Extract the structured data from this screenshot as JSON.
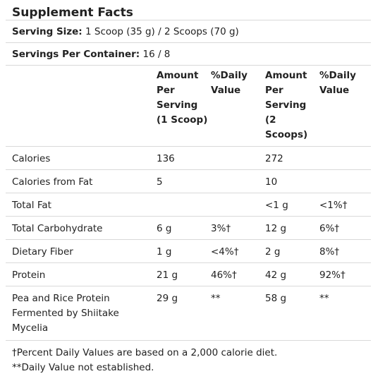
{
  "title": "Supplement Facts",
  "serving_size": {
    "label": "Serving Size:",
    "value": "1 Scoop (35 g) / 2 Scoops (70 g)"
  },
  "servings_per_container": {
    "label": "Servings Per Container:",
    "value": "16 / 8"
  },
  "headers": {
    "amount_1": [
      "Amount",
      "Per",
      "Serving",
      "(1 Scoop)"
    ],
    "dv_1": [
      "%Daily",
      "Value"
    ],
    "amount_2": [
      "Amount",
      "Per",
      "Serving",
      "(2",
      "Scoops)"
    ],
    "dv_2": [
      "%Daily",
      "Value"
    ]
  },
  "rows": [
    {
      "nutrient": "Calories",
      "amount_1": "136",
      "dv_1": "",
      "amount_2": "272",
      "dv_2": ""
    },
    {
      "nutrient": "Calories from Fat",
      "amount_1": "5",
      "dv_1": "",
      "amount_2": "10",
      "dv_2": ""
    },
    {
      "nutrient": "Total Fat",
      "amount_1": "",
      "dv_1": "",
      "amount_2": "<1 g",
      "dv_2": "<1%†"
    },
    {
      "nutrient": "Total Carbohydrate",
      "amount_1": "6 g",
      "dv_1": "3%†",
      "amount_2": "12 g",
      "dv_2": "6%†"
    },
    {
      "nutrient": "Dietary Fiber",
      "amount_1": "1 g",
      "dv_1": "<4%†",
      "amount_2": "2 g",
      "dv_2": "8%†"
    },
    {
      "nutrient": "Protein",
      "amount_1": "21 g",
      "dv_1": "46%†",
      "amount_2": "42 g",
      "dv_2": "92%†"
    },
    {
      "nutrient_lines": [
        "Pea and Rice Protein",
        "Fermented by Shiitake",
        "Mycelia"
      ],
      "amount_1": "29 g",
      "dv_1": "**",
      "amount_2": "58 g",
      "dv_2": "**"
    }
  ],
  "footnotes": [
    "†Percent Daily Values are based on a 2,000 calorie diet.",
    "**Daily Value not established."
  ]
}
